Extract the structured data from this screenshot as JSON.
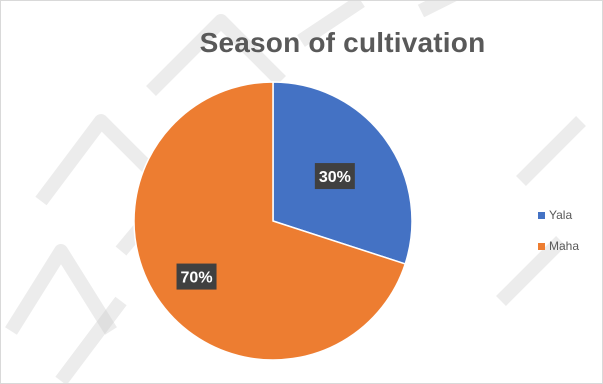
{
  "chart_data": {
    "type": "pie",
    "title": "Season of cultivation",
    "categories": [
      "Yala",
      "Maha"
    ],
    "values": [
      30,
      70
    ],
    "data_labels": [
      "30%",
      "70%"
    ],
    "colors": [
      "#4472C4",
      "#ED7D31"
    ],
    "legend_position": "right",
    "watermark_color": "#c8c8c8"
  }
}
